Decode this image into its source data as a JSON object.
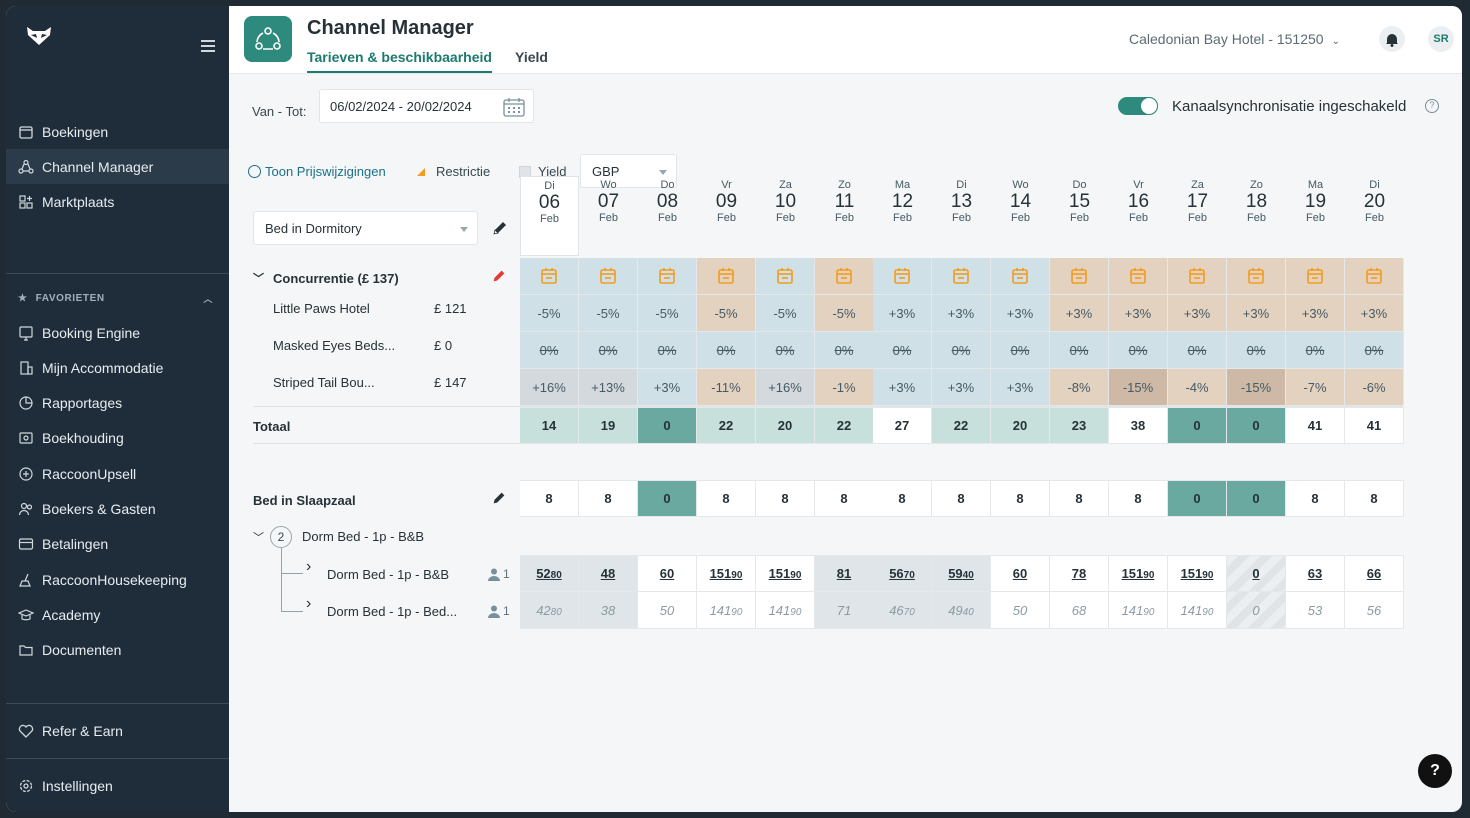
{
  "sidebar": {
    "items": [
      {
        "label": "Boekingen",
        "icon": "calendar-icon"
      },
      {
        "label": "Channel Manager",
        "icon": "network-icon",
        "active": true
      },
      {
        "label": "Marktplaats",
        "icon": "apps-icon"
      }
    ],
    "favorites_title": "FAVORIETEN",
    "favorites": [
      {
        "label": "Booking Engine",
        "icon": "booking-engine-icon"
      },
      {
        "label": "Mijn Accommodatie",
        "icon": "building-icon"
      },
      {
        "label": "Rapportages",
        "icon": "pie-icon"
      },
      {
        "label": "Boekhouding",
        "icon": "ledger-icon"
      },
      {
        "label": "RaccoonUpsell",
        "icon": "plus-circle-icon"
      },
      {
        "label": "Boekers & Gasten",
        "icon": "users-icon"
      },
      {
        "label": "Betalingen",
        "icon": "card-icon"
      },
      {
        "label": "RaccoonHousekeeping",
        "icon": "broom-icon"
      },
      {
        "label": "Academy",
        "icon": "academy-icon"
      },
      {
        "label": "Documenten",
        "icon": "folder-icon"
      }
    ],
    "refer": "Refer & Earn",
    "settings": "Instellingen"
  },
  "header": {
    "title": "Channel Manager",
    "tabs": [
      "Tarieven & beschikbaarheid",
      "Yield"
    ],
    "hotel": "Caledonian Bay Hotel - 151250",
    "avatar": "SR"
  },
  "toolbar": {
    "range_label": "Van - Tot:",
    "range_value": "06/02/2024 - 20/02/2024",
    "sync_label": "Kanaalsynchronisatie ingeschakeld",
    "price_changes": "Toon Prijswijzigingen",
    "restriction": "Restrictie",
    "yield": "Yield",
    "currency": "GBP",
    "room_select": "Bed in Dormitory"
  },
  "days": [
    {
      "dw": "Di",
      "dn": "06",
      "dm": "Feb"
    },
    {
      "dw": "Wo",
      "dn": "07",
      "dm": "Feb"
    },
    {
      "dw": "Do",
      "dn": "08",
      "dm": "Feb"
    },
    {
      "dw": "Vr",
      "dn": "09",
      "dm": "Feb"
    },
    {
      "dw": "Za",
      "dn": "10",
      "dm": "Feb"
    },
    {
      "dw": "Zo",
      "dn": "11",
      "dm": "Feb"
    },
    {
      "dw": "Ma",
      "dn": "12",
      "dm": "Feb"
    },
    {
      "dw": "Di",
      "dn": "13",
      "dm": "Feb"
    },
    {
      "dw": "Wo",
      "dn": "14",
      "dm": "Feb"
    },
    {
      "dw": "Do",
      "dn": "15",
      "dm": "Feb"
    },
    {
      "dw": "Vr",
      "dn": "16",
      "dm": "Feb"
    },
    {
      "dw": "Za",
      "dn": "17",
      "dm": "Feb"
    },
    {
      "dw": "Zo",
      "dn": "18",
      "dm": "Feb"
    },
    {
      "dw": "Ma",
      "dn": "19",
      "dm": "Feb"
    },
    {
      "dw": "Di",
      "dn": "20",
      "dm": "Feb"
    }
  ],
  "competition": {
    "title": "Concurrentie (£ 137)",
    "rows": [
      {
        "name": "Little Paws Hotel",
        "price": "£ 121",
        "values": [
          "-5%",
          "-5%",
          "-5%",
          "-5%",
          "-5%",
          "-5%",
          "+3%",
          "+3%",
          "+3%",
          "+3%",
          "+3%",
          "+3%",
          "+3%",
          "+3%",
          "+3%"
        ]
      },
      {
        "name": "Masked Eyes Beds...",
        "price": "£ 0",
        "values": [
          "0%",
          "0%",
          "0%",
          "0%",
          "0%",
          "0%",
          "0%",
          "0%",
          "0%",
          "0%",
          "0%",
          "0%",
          "0%",
          "0%",
          "0%"
        ]
      },
      {
        "name": "Striped Tail Bou...",
        "price": "£ 147",
        "values": [
          "+16%",
          "+13%",
          "+3%",
          "-11%",
          "+16%",
          "-1%",
          "+3%",
          "+3%",
          "+3%",
          "-8%",
          "-15%",
          "-4%",
          "-15%",
          "-7%",
          "-6%"
        ]
      }
    ]
  },
  "totaal": {
    "label": "Totaal",
    "values": [
      "14",
      "19",
      "0",
      "22",
      "20",
      "22",
      "27",
      "22",
      "20",
      "23",
      "38",
      "0",
      "0",
      "41",
      "41"
    ]
  },
  "slaapzaal": {
    "label": "Bed in Slaapzaal",
    "values": [
      "8",
      "8",
      "0",
      "8",
      "8",
      "8",
      "8",
      "8",
      "8",
      "8",
      "8",
      "0",
      "0",
      "8",
      "8"
    ]
  },
  "group": {
    "count": "2",
    "label": "Dorm Bed - 1p - B&B"
  },
  "rates": [
    {
      "name": "Dorm Bed - 1p - B&B",
      "occupancy": "1",
      "values": [
        [
          "52",
          "80"
        ],
        [
          "48",
          ""
        ],
        [
          "60",
          ""
        ],
        [
          "151",
          "90"
        ],
        [
          "151",
          "90"
        ],
        [
          "81",
          ""
        ],
        [
          "56",
          "70"
        ],
        [
          "59",
          "40"
        ],
        [
          "60",
          ""
        ],
        [
          "78",
          ""
        ],
        [
          "151",
          "90"
        ],
        [
          "151",
          "90"
        ],
        [
          "0",
          ""
        ],
        [
          "63",
          ""
        ],
        [
          "66",
          ""
        ]
      ]
    },
    {
      "name": "Dorm Bed - 1p - Bed...",
      "occupancy": "1",
      "values": [
        [
          "42",
          "80"
        ],
        [
          "38",
          ""
        ],
        [
          "50",
          ""
        ],
        [
          "141",
          "90"
        ],
        [
          "141",
          "90"
        ],
        [
          "71",
          ""
        ],
        [
          "46",
          "70"
        ],
        [
          "49",
          "40"
        ],
        [
          "50",
          ""
        ],
        [
          "68",
          ""
        ],
        [
          "141",
          "90"
        ],
        [
          "141",
          "90"
        ],
        [
          "0",
          ""
        ],
        [
          "53",
          ""
        ],
        [
          "56",
          ""
        ]
      ]
    }
  ],
  "help": "?"
}
